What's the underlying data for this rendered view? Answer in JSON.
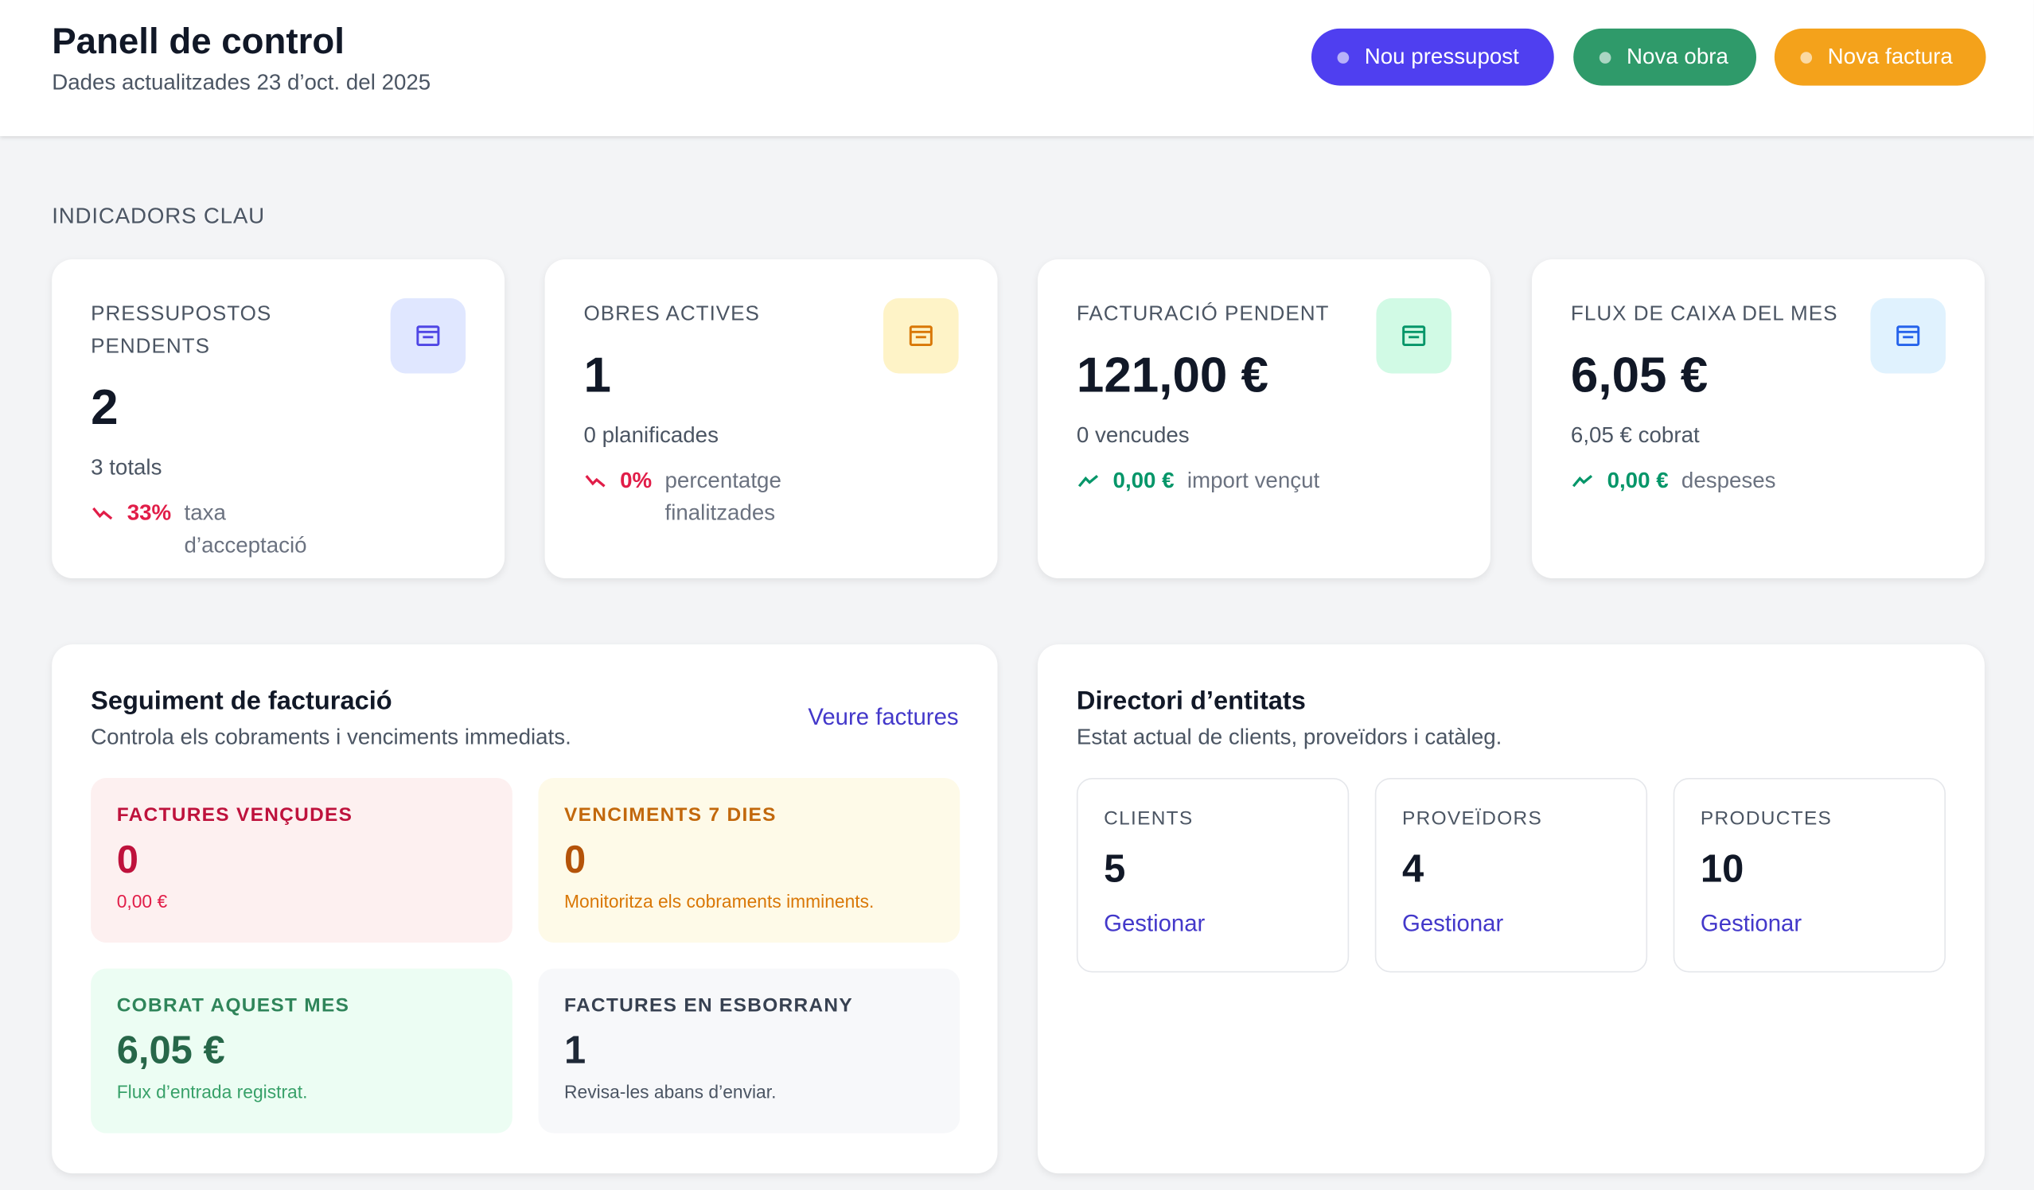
{
  "header": {
    "title": "Panell de control",
    "subtitle": "Dades actualitzades 23 d’oct. del 2025",
    "buttons": [
      "Nou pressupost",
      "Nova obra",
      "Nova factura"
    ]
  },
  "kpi": {
    "section_title": "INDICADORS CLAU",
    "cards": [
      {
        "label": "PRESSUPOSTOS PENDENTS",
        "value": "2",
        "detail": "3 totals",
        "trend_value": "33%",
        "trend_text": "taxa d’acceptació"
      },
      {
        "label": "OBRES ACTIVES",
        "value": "1",
        "detail": "0 planificades",
        "trend_value": "0%",
        "trend_text": "percentatge finalitzades"
      },
      {
        "label": "FACTURACIÓ PENDENT",
        "value": "121,00 €",
        "detail": "0 vencudes",
        "trend_value": "0,00 €",
        "trend_text": "import vençut"
      },
      {
        "label": "FLUX DE CAIXA DEL MES",
        "value": "6,05 €",
        "detail": "6,05 € cobrat",
        "trend_value": "0,00 €",
        "trend_text": "despeses"
      }
    ]
  },
  "billing": {
    "title": "Seguiment de facturació",
    "subtitle": "Controla els cobraments i venciments immediats.",
    "link": "Veure factures",
    "tiles": [
      {
        "label": "FACTURES VENÇUDES",
        "value": "0",
        "note": "0,00 €"
      },
      {
        "label": "VENCIMENTS 7 DIES",
        "value": "0",
        "note": "Monitoritza els cobraments imminents."
      },
      {
        "label": "COBRAT AQUEST MES",
        "value": "6,05 €",
        "note": "Flux d’entrada registrat."
      },
      {
        "label": "FACTURES EN ESBORRANY",
        "value": "1",
        "note": "Revisa-les abans d’enviar."
      }
    ]
  },
  "directory": {
    "title": "Directori d’entitats",
    "subtitle": "Estat actual de clients, proveïdors i catàleg.",
    "tiles": [
      {
        "label": "CLIENTS",
        "value": "5",
        "link": "Gestionar"
      },
      {
        "label": "PROVEÏDORS",
        "value": "4",
        "link": "Gestionar"
      },
      {
        "label": "PRODUCTES",
        "value": "10",
        "link": "Gestionar"
      }
    ]
  }
}
